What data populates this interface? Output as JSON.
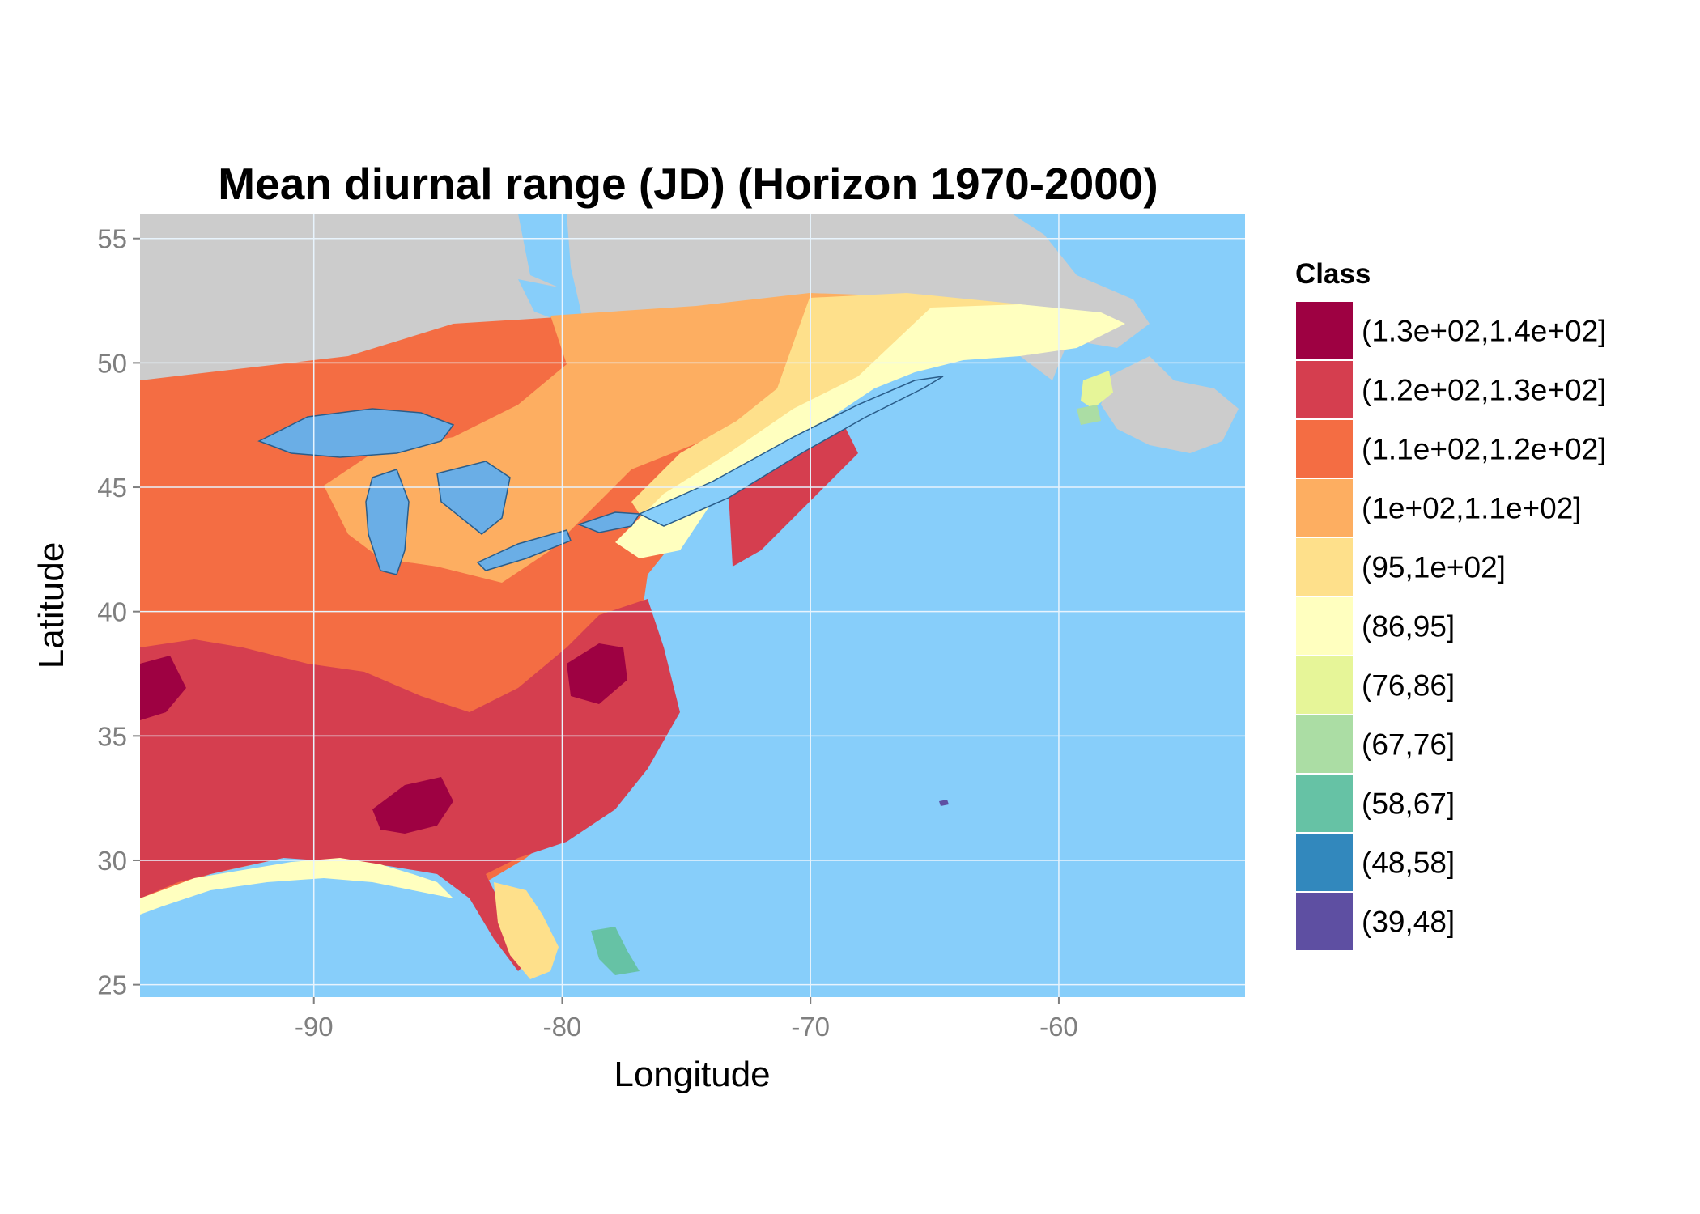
{
  "chart_data": {
    "type": "heatmap",
    "title": "Mean diurnal range (JD) (Horizon 1970-2000)",
    "xlabel": "Longitude",
    "ylabel": "Latitude",
    "xlim": [
      -97,
      -52.5
    ],
    "ylim": [
      24.5,
      56
    ],
    "x_ticks": [
      -90,
      -80,
      -70,
      -60
    ],
    "y_ticks": [
      25,
      30,
      35,
      40,
      45,
      50,
      55
    ],
    "x_tick_labels": [
      "-90",
      "-80",
      "-70",
      "-60"
    ],
    "y_tick_labels": [
      "25",
      "30",
      "35",
      "40",
      "45",
      "50",
      "55"
    ],
    "grid": true,
    "legend": {
      "title": "Class",
      "placement": "right",
      "classes": [
        {
          "label": "(1.3e+02,1.4e+02]",
          "color": "#9e0142"
        },
        {
          "label": "(1.2e+02,1.3e+02]",
          "color": "#d53e4f"
        },
        {
          "label": "(1.1e+02,1.2e+02]",
          "color": "#f46d43"
        },
        {
          "label": "(1e+02,1.1e+02]",
          "color": "#fdae61"
        },
        {
          "label": "(95,1e+02]",
          "color": "#fee08b"
        },
        {
          "label": "(86,95]",
          "color": "#ffffbf"
        },
        {
          "label": "(76,86]",
          "color": "#e6f598"
        },
        {
          "label": "(67,76]",
          "color": "#abdda4"
        },
        {
          "label": "(58,67]",
          "color": "#66c2a5"
        },
        {
          "label": "(48,58]",
          "color": "#3288bd"
        },
        {
          "label": "(39,48]",
          "color": "#5e4fa2"
        }
      ]
    },
    "colors": {
      "ocean": "#87cefa",
      "land_outside": "#cccccc",
      "lakes": "#6aaee6",
      "grid": "#e8f4fd",
      "tick_text": "#7f7f7f"
    }
  }
}
